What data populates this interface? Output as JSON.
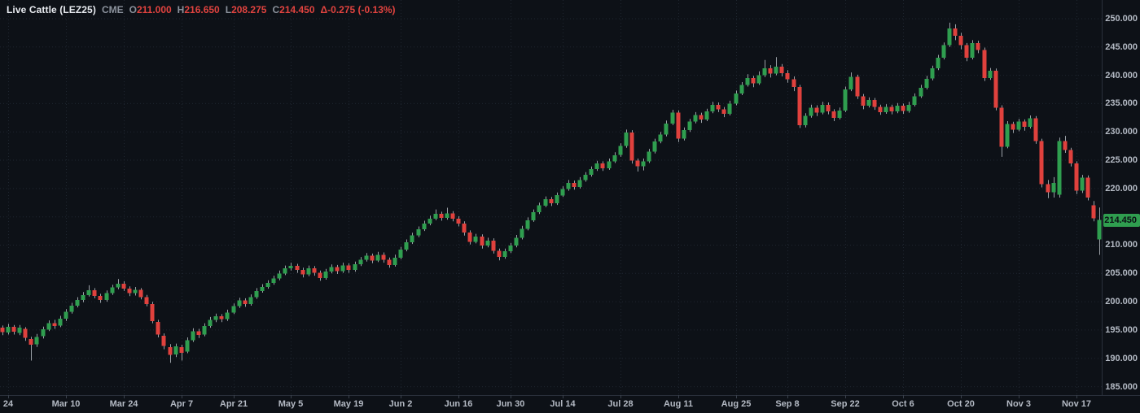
{
  "header": {
    "symbol": "Live Cattle (LEZ25)",
    "exchange": "CME",
    "fields": [
      {
        "label": "O",
        "value": "211.000"
      },
      {
        "label": "H",
        "value": "216.650"
      },
      {
        "label": "L",
        "value": "208.275"
      },
      {
        "label": "C",
        "value": "214.450"
      }
    ],
    "change": "Δ-0.275 (-0.13%)"
  },
  "colors": {
    "up": "#2f9e4f",
    "down": "#e0413d",
    "wick": "#9aa0a6",
    "grid": "#262d39",
    "axis_text": "#b4bac4",
    "background": "#0d1117",
    "tag_bg": "#2f9e4f",
    "tag_text": "#0b0f14",
    "header_value_red": "#e0433f",
    "header_gray": "#8b929c"
  },
  "chart_data": {
    "type": "candlestick",
    "title": "Live Cattle (LEZ25) CME daily candlestick chart",
    "last_price": "214.450",
    "ylim": [
      183.5,
      253.3
    ],
    "grid": "dotted",
    "y_ticks": [
      "250.000",
      "245.000",
      "240.000",
      "235.000",
      "230.000",
      "225.000",
      "220.000",
      "210.000",
      "205.000",
      "200.000",
      "195.000",
      "190.000",
      "185.000"
    ],
    "x_ticks": [
      {
        "i": 1,
        "label": "24"
      },
      {
        "i": 11,
        "label": "Mar 10"
      },
      {
        "i": 21,
        "label": "Mar 24"
      },
      {
        "i": 31,
        "label": "Apr 7"
      },
      {
        "i": 40,
        "label": "Apr 21"
      },
      {
        "i": 50,
        "label": "May 5"
      },
      {
        "i": 60,
        "label": "May 19"
      },
      {
        "i": 69,
        "label": "Jun 2"
      },
      {
        "i": 79,
        "label": "Jun 16"
      },
      {
        "i": 88,
        "label": "Jun 30"
      },
      {
        "i": 97,
        "label": "Jul 14"
      },
      {
        "i": 107,
        "label": "Jul 28"
      },
      {
        "i": 117,
        "label": "Aug 11"
      },
      {
        "i": 127,
        "label": "Aug 25"
      },
      {
        "i": 136,
        "label": "Sep 8"
      },
      {
        "i": 146,
        "label": "Sep 22"
      },
      {
        "i": 156,
        "label": "Oct 6"
      },
      {
        "i": 166,
        "label": "Oct 20"
      },
      {
        "i": 176,
        "label": "Nov 3"
      },
      {
        "i": 186,
        "label": "Nov 17"
      }
    ],
    "ohlc_format": [
      "open",
      "high",
      "low",
      "close"
    ],
    "series": [
      [
        195.4,
        195.8,
        194.1,
        194.6
      ],
      [
        194.6,
        196.1,
        194.2,
        195.6
      ],
      [
        195.6,
        195.9,
        194.2,
        194.7
      ],
      [
        194.5,
        195.9,
        194.1,
        195.4
      ],
      [
        195.2,
        195.5,
        193.1,
        193.6
      ],
      [
        193.4,
        193.8,
        189.6,
        192.4
      ],
      [
        192.5,
        194.3,
        192.0,
        193.8
      ],
      [
        193.9,
        195.6,
        193.5,
        195.1
      ],
      [
        195.1,
        196.7,
        194.8,
        196.2
      ],
      [
        196.2,
        196.8,
        195.2,
        195.7
      ],
      [
        195.8,
        197.5,
        195.5,
        197.0
      ],
      [
        197.0,
        198.7,
        196.6,
        198.2
      ],
      [
        198.2,
        199.8,
        197.9,
        199.3
      ],
      [
        199.3,
        200.8,
        199.0,
        200.3
      ],
      [
        200.3,
        201.7,
        199.9,
        201.2
      ],
      [
        201.2,
        202.9,
        200.9,
        202.0
      ],
      [
        202.0,
        202.4,
        200.6,
        201.0
      ],
      [
        201.0,
        201.4,
        199.8,
        200.3
      ],
      [
        200.3,
        202.0,
        200.0,
        201.5
      ],
      [
        201.5,
        203.0,
        201.2,
        202.5
      ],
      [
        202.5,
        204.0,
        202.2,
        203.2
      ],
      [
        203.2,
        203.6,
        201.9,
        202.3
      ],
      [
        202.3,
        202.7,
        201.0,
        201.5
      ],
      [
        201.5,
        202.6,
        201.1,
        202.1
      ],
      [
        202.1,
        202.4,
        200.4,
        200.8
      ],
      [
        200.8,
        201.2,
        199.2,
        199.6
      ],
      [
        199.6,
        200.0,
        196.2,
        196.6
      ],
      [
        196.4,
        196.8,
        193.7,
        194.2
      ],
      [
        194.0,
        194.4,
        191.6,
        192.2
      ],
      [
        192.0,
        192.5,
        189.2,
        190.6
      ],
      [
        190.7,
        192.6,
        190.2,
        192.1
      ],
      [
        192.0,
        192.4,
        189.6,
        191.0
      ],
      [
        191.2,
        193.7,
        190.9,
        193.2
      ],
      [
        193.2,
        195.3,
        192.9,
        194.8
      ],
      [
        194.8,
        195.2,
        193.6,
        194.1
      ],
      [
        194.2,
        196.2,
        193.9,
        195.7
      ],
      [
        195.7,
        197.3,
        195.4,
        196.8
      ],
      [
        196.8,
        197.9,
        196.4,
        197.4
      ],
      [
        197.4,
        197.8,
        196.4,
        196.9
      ],
      [
        196.9,
        198.6,
        196.6,
        198.1
      ],
      [
        198.1,
        199.7,
        197.8,
        199.2
      ],
      [
        199.2,
        200.7,
        198.9,
        200.2
      ],
      [
        200.2,
        200.6,
        199.1,
        199.6
      ],
      [
        199.6,
        201.3,
        199.3,
        200.8
      ],
      [
        200.8,
        202.4,
        200.5,
        201.9
      ],
      [
        201.9,
        203.1,
        201.6,
        202.6
      ],
      [
        202.6,
        203.8,
        202.3,
        203.3
      ],
      [
        203.3,
        204.6,
        203.0,
        204.1
      ],
      [
        204.1,
        205.5,
        203.8,
        205.0
      ],
      [
        205.0,
        206.4,
        204.7,
        205.9
      ],
      [
        205.9,
        206.9,
        205.5,
        206.3
      ],
      [
        206.3,
        206.7,
        205.1,
        205.6
      ],
      [
        205.6,
        206.0,
        204.3,
        204.8
      ],
      [
        204.8,
        206.4,
        204.5,
        205.9
      ],
      [
        205.9,
        206.3,
        204.6,
        205.1
      ],
      [
        205.1,
        205.5,
        203.7,
        204.2
      ],
      [
        204.2,
        205.8,
        203.9,
        205.3
      ],
      [
        205.3,
        206.6,
        205.0,
        206.1
      ],
      [
        206.1,
        206.5,
        204.9,
        205.4
      ],
      [
        205.4,
        206.9,
        205.1,
        206.4
      ],
      [
        206.4,
        206.8,
        205.1,
        205.6
      ],
      [
        205.6,
        207.1,
        205.3,
        206.6
      ],
      [
        206.6,
        207.9,
        206.3,
        207.4
      ],
      [
        207.4,
        208.6,
        207.1,
        208.1
      ],
      [
        208.1,
        208.5,
        206.8,
        207.3
      ],
      [
        207.3,
        208.8,
        207.0,
        208.3
      ],
      [
        208.3,
        208.7,
        206.9,
        207.4
      ],
      [
        207.4,
        207.8,
        206.0,
        206.5
      ],
      [
        206.5,
        208.3,
        206.2,
        207.8
      ],
      [
        207.8,
        209.7,
        207.5,
        209.2
      ],
      [
        209.2,
        211.0,
        208.9,
        210.5
      ],
      [
        210.5,
        212.2,
        210.2,
        211.7
      ],
      [
        211.7,
        213.3,
        211.4,
        212.8
      ],
      [
        212.8,
        214.3,
        212.5,
        213.8
      ],
      [
        213.8,
        215.2,
        213.5,
        214.7
      ],
      [
        214.7,
        216.3,
        214.4,
        215.5
      ],
      [
        215.5,
        215.9,
        214.3,
        214.8
      ],
      [
        214.8,
        216.6,
        214.5,
        215.6
      ],
      [
        215.6,
        216.0,
        214.2,
        214.7
      ],
      [
        214.7,
        215.1,
        213.3,
        213.8
      ],
      [
        213.8,
        214.2,
        211.7,
        212.2
      ],
      [
        212.2,
        212.6,
        210.1,
        210.6
      ],
      [
        210.6,
        212.0,
        210.3,
        211.5
      ],
      [
        211.5,
        211.9,
        209.4,
        209.9
      ],
      [
        209.9,
        211.3,
        209.6,
        210.8
      ],
      [
        210.8,
        211.2,
        208.5,
        209.0
      ],
      [
        209.0,
        209.4,
        207.3,
        207.9
      ],
      [
        207.9,
        209.4,
        207.6,
        208.9
      ],
      [
        208.9,
        210.4,
        208.6,
        209.9
      ],
      [
        209.9,
        211.8,
        209.6,
        211.3
      ],
      [
        211.3,
        213.4,
        211.0,
        212.9
      ],
      [
        212.9,
        214.9,
        212.6,
        214.4
      ],
      [
        214.4,
        216.3,
        214.1,
        215.8
      ],
      [
        215.8,
        217.5,
        215.5,
        217.0
      ],
      [
        217.0,
        218.6,
        216.7,
        218.1
      ],
      [
        218.1,
        218.5,
        216.9,
        217.4
      ],
      [
        217.4,
        219.3,
        217.1,
        218.8
      ],
      [
        218.8,
        220.4,
        218.5,
        219.9
      ],
      [
        219.9,
        221.5,
        219.6,
        221.0
      ],
      [
        221.0,
        221.4,
        219.8,
        220.3
      ],
      [
        220.3,
        222.0,
        220.0,
        221.5
      ],
      [
        221.5,
        222.9,
        221.2,
        222.4
      ],
      [
        222.4,
        223.9,
        222.1,
        223.4
      ],
      [
        223.4,
        224.9,
        223.1,
        224.4
      ],
      [
        224.4,
        224.8,
        223.1,
        223.6
      ],
      [
        223.6,
        225.3,
        223.3,
        224.8
      ],
      [
        224.8,
        226.4,
        224.5,
        225.9
      ],
      [
        225.9,
        228.0,
        225.6,
        227.5
      ],
      [
        227.5,
        230.4,
        227.2,
        229.9
      ],
      [
        229.9,
        230.3,
        224.4,
        224.9
      ],
      [
        224.9,
        225.3,
        223.0,
        223.9
      ],
      [
        223.9,
        225.3,
        223.2,
        224.8
      ],
      [
        224.8,
        227.0,
        224.5,
        226.5
      ],
      [
        226.5,
        228.8,
        226.2,
        228.3
      ],
      [
        228.3,
        230.0,
        228.0,
        229.5
      ],
      [
        229.5,
        232.0,
        229.2,
        231.5
      ],
      [
        231.5,
        233.9,
        231.2,
        233.4
      ],
      [
        233.4,
        233.8,
        228.2,
        228.8
      ],
      [
        228.8,
        230.8,
        228.5,
        230.3
      ],
      [
        230.3,
        232.3,
        230.0,
        231.8
      ],
      [
        231.8,
        233.5,
        231.5,
        233.0
      ],
      [
        233.0,
        233.4,
        231.6,
        232.2
      ],
      [
        232.2,
        234.1,
        231.9,
        233.6
      ],
      [
        233.6,
        235.3,
        233.3,
        234.8
      ],
      [
        234.8,
        235.2,
        233.5,
        234.0
      ],
      [
        234.0,
        234.4,
        232.6,
        233.2
      ],
      [
        233.2,
        235.5,
        232.9,
        235.0
      ],
      [
        235.0,
        237.3,
        234.7,
        236.8
      ],
      [
        236.8,
        238.8,
        236.5,
        238.3
      ],
      [
        238.3,
        240.2,
        238.0,
        239.5
      ],
      [
        239.5,
        239.9,
        237.9,
        238.6
      ],
      [
        238.6,
        240.7,
        238.3,
        240.0
      ],
      [
        240.0,
        242.7,
        239.7,
        241.2
      ],
      [
        241.2,
        241.8,
        239.6,
        240.3
      ],
      [
        240.3,
        243.2,
        240.0,
        241.5
      ],
      [
        241.5,
        242.0,
        239.8,
        240.4
      ],
      [
        240.4,
        240.9,
        238.7,
        239.3
      ],
      [
        239.3,
        239.8,
        237.2,
        237.9
      ],
      [
        237.9,
        238.3,
        230.7,
        231.2
      ],
      [
        231.2,
        233.3,
        230.8,
        232.8
      ],
      [
        232.8,
        234.8,
        232.5,
        234.3
      ],
      [
        234.3,
        234.7,
        232.8,
        233.4
      ],
      [
        233.4,
        235.3,
        233.1,
        234.8
      ],
      [
        234.8,
        235.2,
        233.1,
        233.6
      ],
      [
        233.6,
        234.0,
        231.9,
        232.5
      ],
      [
        232.5,
        234.3,
        232.2,
        233.8
      ],
      [
        233.8,
        238.0,
        233.5,
        237.5
      ],
      [
        237.5,
        240.5,
        237.2,
        239.7
      ],
      [
        239.7,
        240.1,
        235.8,
        236.3
      ],
      [
        236.3,
        236.7,
        234.0,
        234.6
      ],
      [
        234.6,
        236.1,
        234.3,
        235.6
      ],
      [
        235.6,
        236.0,
        233.9,
        234.4
      ],
      [
        234.4,
        234.8,
        233.0,
        233.5
      ],
      [
        233.5,
        234.9,
        233.2,
        234.4
      ],
      [
        234.4,
        234.8,
        233.1,
        233.6
      ],
      [
        233.6,
        235.1,
        233.3,
        234.6
      ],
      [
        234.6,
        235.0,
        233.2,
        233.7
      ],
      [
        233.7,
        235.3,
        233.4,
        234.8
      ],
      [
        234.8,
        236.8,
        234.5,
        236.3
      ],
      [
        236.3,
        238.3,
        236.0,
        237.8
      ],
      [
        237.8,
        239.9,
        237.5,
        239.4
      ],
      [
        239.4,
        241.7,
        239.1,
        241.2
      ],
      [
        241.2,
        243.6,
        240.9,
        243.1
      ],
      [
        243.1,
        245.8,
        242.8,
        245.3
      ],
      [
        245.3,
        249.3,
        245.0,
        248.3
      ],
      [
        248.3,
        249.0,
        246.2,
        247.0
      ],
      [
        247.0,
        247.5,
        244.6,
        245.3
      ],
      [
        245.3,
        245.7,
        242.5,
        243.1
      ],
      [
        243.1,
        246.2,
        242.8,
        245.7
      ],
      [
        245.7,
        246.1,
        243.9,
        244.5
      ],
      [
        244.5,
        244.9,
        239.0,
        239.5
      ],
      [
        239.5,
        241.3,
        239.2,
        240.8
      ],
      [
        240.8,
        241.2,
        233.8,
        234.3
      ],
      [
        234.3,
        234.7,
        225.6,
        227.4
      ],
      [
        227.4,
        231.9,
        227.1,
        231.4
      ],
      [
        231.4,
        231.8,
        229.8,
        230.4
      ],
      [
        230.4,
        232.3,
        230.1,
        231.8
      ],
      [
        231.8,
        232.2,
        230.2,
        230.9
      ],
      [
        230.9,
        232.9,
        230.6,
        232.4
      ],
      [
        232.4,
        232.8,
        227.9,
        228.4
      ],
      [
        228.4,
        228.8,
        220.2,
        220.8
      ],
      [
        220.8,
        221.5,
        218.3,
        219.3
      ],
      [
        219.3,
        222.0,
        218.4,
        221.0
      ],
      [
        218.9,
        229.0,
        218.4,
        228.4
      ],
      [
        228.4,
        229.3,
        226.3,
        226.8
      ],
      [
        226.8,
        227.2,
        223.9,
        224.4
      ],
      [
        224.4,
        224.8,
        219.0,
        219.6
      ],
      [
        219.6,
        222.4,
        219.2,
        221.9
      ],
      [
        221.9,
        222.3,
        217.9,
        218.4
      ],
      [
        217.0,
        217.8,
        214.2,
        214.725
      ],
      [
        211.0,
        216.65,
        208.275,
        214.45
      ]
    ]
  }
}
